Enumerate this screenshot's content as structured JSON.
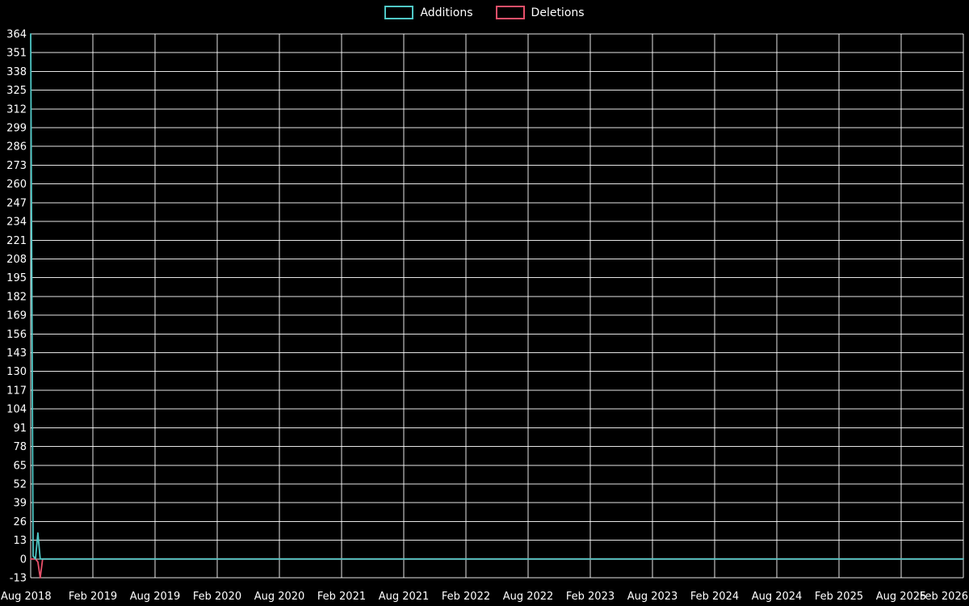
{
  "legend": {
    "additions_label": "Additions",
    "deletions_label": "Deletions"
  },
  "colors": {
    "background": "#000000",
    "text": "#ffffff",
    "grid": "#ffffff",
    "additions": "#4fc8c6",
    "deletions": "#e8506a"
  },
  "chart_data": {
    "type": "line",
    "title": "",
    "xlabel": "",
    "ylabel": "",
    "grid": true,
    "legend_position": "top-center",
    "x_tick_labels": [
      "Aug 2018",
      "Feb 2019",
      "Aug 2019",
      "Feb 2020",
      "Aug 2020",
      "Feb 2021",
      "Aug 2021",
      "Feb 2022",
      "Aug 2022",
      "Feb 2023",
      "Aug 2023",
      "Feb 2024",
      "Aug 2024",
      "Feb 2025",
      "Aug 2025",
      "Feb 2026"
    ],
    "y_ticks": [
      364,
      351,
      338,
      325,
      312,
      299,
      286,
      273,
      260,
      247,
      234,
      221,
      208,
      195,
      182,
      169,
      156,
      143,
      130,
      117,
      104,
      91,
      78,
      65,
      52,
      39,
      26,
      13,
      0,
      -13
    ],
    "ylim": [
      -13,
      364
    ],
    "x_domain_weeks": [
      0,
      390
    ],
    "series": [
      {
        "name": "Deletions",
        "color_key": "deletions",
        "points": [
          [
            0,
            0
          ],
          [
            1,
            0
          ],
          [
            2,
            0
          ],
          [
            3,
            -2
          ],
          [
            4,
            -13
          ],
          [
            5,
            0
          ],
          [
            390,
            0
          ]
        ]
      },
      {
        "name": "Additions",
        "color_key": "additions",
        "points": [
          [
            0,
            364
          ],
          [
            1,
            2
          ],
          [
            2,
            0
          ],
          [
            3,
            18
          ],
          [
            4,
            0
          ],
          [
            5,
            0
          ],
          [
            390,
            0
          ]
        ]
      }
    ]
  }
}
